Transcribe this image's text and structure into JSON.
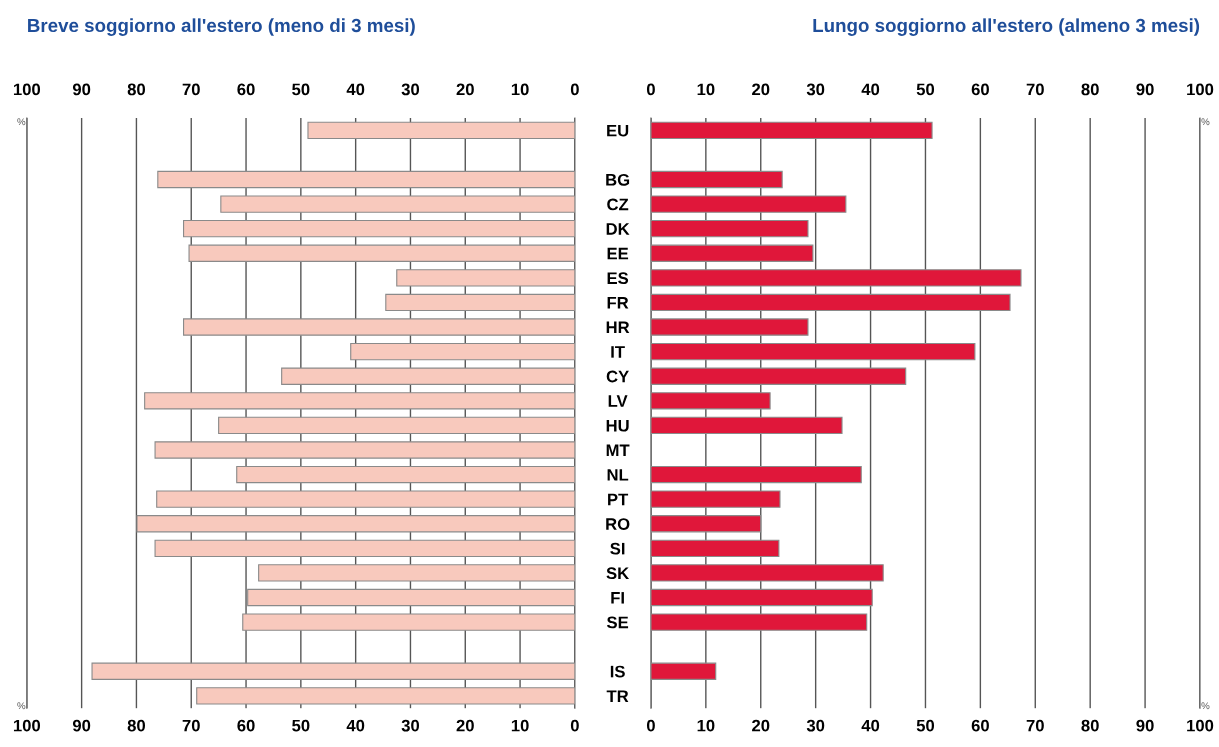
{
  "chart_data": [
    {
      "type": "bar",
      "orientation": "horizontal",
      "title": "Breve soggiorno all'estero (meno di 3 mesi)",
      "categories": [
        null,
        null,
        null,
        null,
        null,
        null,
        null,
        null,
        null,
        null,
        null,
        null,
        null,
        null,
        null,
        null,
        null,
        null,
        null,
        null,
        null,
        null,
        null,
        null
      ],
      "series": [
        {
          "color": "#f8c9bd",
          "values": [
            48.7,
            null,
            76.1,
            64.6,
            71.4,
            70.4,
            32.5,
            34.5,
            71.4,
            40.9,
            53.5,
            78.5,
            65,
            76.6,
            61.7,
            76.3,
            79.9,
            76.6,
            57.7,
            59.7,
            60.6,
            null,
            88.1,
            69
          ]
        }
      ],
      "xlim": [
        100,
        0
      ],
      "xticks": [
        100,
        90,
        80,
        70,
        60,
        50,
        40,
        30,
        20,
        10,
        0
      ],
      "x2lim": [
        100,
        0
      ],
      "x2ticks": [
        100,
        90,
        80,
        70,
        60,
        50,
        40,
        30,
        20,
        10,
        0
      ],
      "grid": "x",
      "tick_labels": "x",
      "legend": false,
      "annotations": [
        "%",
        "%"
      ]
    },
    {
      "type": "bar",
      "orientation": "horizontal",
      "title": "Lungo soggiorno all'estero (almeno 3 mesi)",
      "categories": [
        "EU",
        null,
        "BG",
        "CZ",
        "DK",
        "EE",
        "ES",
        "FR",
        "HR",
        "IT",
        "CY",
        "LV",
        "HU",
        "MT",
        "NL",
        "PT",
        "RO",
        "SI",
        "SK",
        "FI",
        "SE",
        null,
        "IS",
        "TR"
      ],
      "series": [
        {
          "color": "#e0173a",
          "values": [
            51.2,
            null,
            23.9,
            35.5,
            28.6,
            29.5,
            67.4,
            65.4,
            28.6,
            59,
            46.4,
            21.7,
            34.8,
            null,
            38.3,
            23.5,
            20,
            23.3,
            42.3,
            40.3,
            39.3,
            null,
            11.8,
            null
          ]
        }
      ],
      "xlim": [
        0,
        100
      ],
      "xticks": [
        0,
        10,
        20,
        30,
        40,
        50,
        60,
        70,
        80,
        90,
        100
      ],
      "x2lim": [
        0,
        100
      ],
      "x2ticks": [
        0,
        10,
        20,
        30,
        40,
        50,
        60,
        70,
        80,
        90,
        100
      ],
      "grid": "x",
      "legend": false,
      "annotations": [
        "%",
        "%"
      ]
    }
  ]
}
